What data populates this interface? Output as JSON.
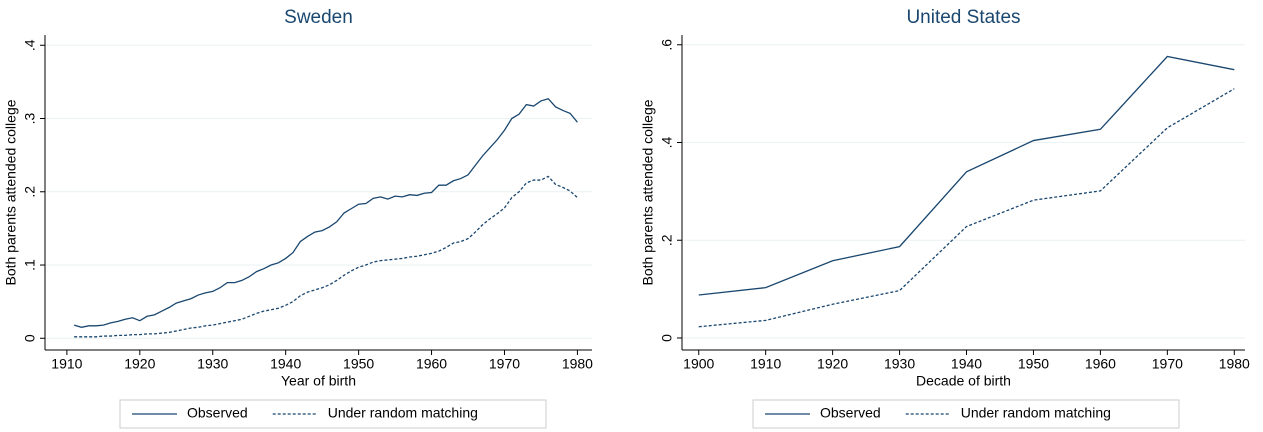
{
  "chart_data": [
    {
      "type": "line",
      "title": "Sweden",
      "x_label": "Year of birth",
      "y_label": "Both parents attended college",
      "x": [
        1911,
        1912,
        1913,
        1914,
        1915,
        1916,
        1917,
        1918,
        1919,
        1920,
        1921,
        1922,
        1923,
        1924,
        1925,
        1926,
        1927,
        1928,
        1929,
        1930,
        1931,
        1932,
        1933,
        1934,
        1935,
        1936,
        1937,
        1938,
        1939,
        1940,
        1941,
        1942,
        1943,
        1944,
        1945,
        1946,
        1947,
        1948,
        1949,
        1950,
        1951,
        1952,
        1953,
        1954,
        1955,
        1956,
        1957,
        1958,
        1959,
        1960,
        1961,
        1962,
        1963,
        1964,
        1965,
        1966,
        1967,
        1968,
        1969,
        1970,
        1971,
        1972,
        1973,
        1974,
        1975,
        1976,
        1977,
        1978,
        1979,
        1980
      ],
      "series": [
        {
          "name": "Observed",
          "color": "#1a476f",
          "dash": false,
          "values": [
            0.018,
            0.015,
            0.017,
            0.017,
            0.018,
            0.021,
            0.023,
            0.026,
            0.028,
            0.024,
            0.03,
            0.032,
            0.037,
            0.042,
            0.048,
            0.051,
            0.054,
            0.059,
            0.062,
            0.064,
            0.069,
            0.076,
            0.076,
            0.079,
            0.084,
            0.091,
            0.095,
            0.1,
            0.103,
            0.109,
            0.117,
            0.132,
            0.139,
            0.145,
            0.147,
            0.152,
            0.159,
            0.171,
            0.177,
            0.183,
            0.184,
            0.191,
            0.193,
            0.19,
            0.194,
            0.193,
            0.196,
            0.195,
            0.198,
            0.199,
            0.209,
            0.209,
            0.215,
            0.218,
            0.223,
            0.236,
            0.249,
            0.26,
            0.271,
            0.284,
            0.3,
            0.306,
            0.319,
            0.317,
            0.324,
            0.327,
            0.316,
            0.311,
            0.307,
            0.295
          ]
        },
        {
          "name": "Under random matching",
          "color": "#1a476f",
          "dash": true,
          "values": [
            0.002,
            0.002,
            0.002,
            0.002,
            0.003,
            0.003,
            0.004,
            0.004,
            0.005,
            0.005,
            0.006,
            0.006,
            0.007,
            0.008,
            0.01,
            0.012,
            0.014,
            0.015,
            0.017,
            0.018,
            0.02,
            0.022,
            0.024,
            0.026,
            0.03,
            0.034,
            0.037,
            0.039,
            0.041,
            0.045,
            0.05,
            0.058,
            0.063,
            0.066,
            0.069,
            0.073,
            0.079,
            0.086,
            0.092,
            0.097,
            0.1,
            0.104,
            0.106,
            0.107,
            0.108,
            0.109,
            0.111,
            0.112,
            0.114,
            0.116,
            0.119,
            0.124,
            0.13,
            0.132,
            0.136,
            0.145,
            0.155,
            0.163,
            0.17,
            0.178,
            0.192,
            0.2,
            0.212,
            0.216,
            0.216,
            0.221,
            0.21,
            0.206,
            0.201,
            0.192
          ]
        }
      ],
      "xlim": [
        1907,
        1982
      ],
      "xticks": [
        1910,
        1920,
        1930,
        1940,
        1950,
        1960,
        1970,
        1980
      ],
      "ylim": [
        -0.016,
        0.414
      ],
      "yticks": [
        0,
        {
          "value": 0.1,
          "label": ".1"
        },
        {
          "value": 0.2,
          "label": ".2"
        },
        {
          "value": 0.3,
          "label": ".3"
        },
        {
          "value": 0.4,
          "label": ".4"
        }
      ],
      "grid": true
    },
    {
      "type": "line",
      "title": "United States",
      "x_label": "Decade of birth",
      "y_label": "Both parents attended college",
      "x": [
        1900,
        1910,
        1920,
        1930,
        1940,
        1950,
        1960,
        1970,
        1980
      ],
      "series": [
        {
          "name": "Observed",
          "color": "#1a476f",
          "dash": false,
          "values": [
            0.088,
            0.103,
            0.158,
            0.187,
            0.34,
            0.404,
            0.427,
            0.576,
            0.549
          ]
        },
        {
          "name": "Under random matching",
          "color": "#1a476f",
          "dash": true,
          "values": [
            0.023,
            0.036,
            0.069,
            0.097,
            0.228,
            0.282,
            0.301,
            0.43,
            0.51
          ]
        }
      ],
      "xlim": [
        1897.5,
        1981.6
      ],
      "xticks": [
        1900,
        1910,
        1920,
        1930,
        1940,
        1950,
        1960,
        1970,
        1980
      ],
      "ylim": [
        -0.0246,
        0.62
      ],
      "yticks": [
        0,
        {
          "value": 0.2,
          "label": ".2"
        },
        {
          "value": 0.4,
          "label": ".4"
        },
        {
          "value": 0.6,
          "label": ".6"
        }
      ],
      "grid": true
    }
  ]
}
